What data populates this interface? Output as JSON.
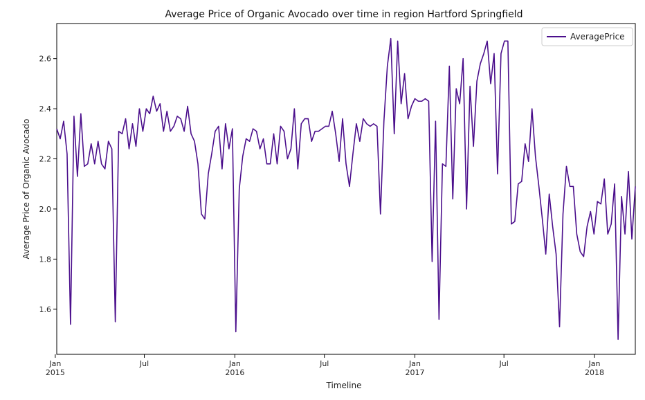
{
  "chart_data": {
    "type": "line",
    "title": "Average Price of Organic Avocado over time in  region Hartford Springfield",
    "xlabel": "Timeline",
    "ylabel": "Average Price of Organic Avocado",
    "xlim": [
      "2015-01-04",
      "2018-03-25"
    ],
    "ylim": [
      1.42,
      2.74
    ],
    "yticks": [
      1.6,
      1.8,
      2.0,
      2.2,
      2.4,
      2.6
    ],
    "xticks": [
      {
        "date": "2015-01-01",
        "label": "Jan",
        "year": "2015"
      },
      {
        "date": "2015-07-01",
        "label": "Jul",
        "year": ""
      },
      {
        "date": "2016-01-01",
        "label": "Jan",
        "year": "2016"
      },
      {
        "date": "2016-07-01",
        "label": "Jul",
        "year": ""
      },
      {
        "date": "2017-01-01",
        "label": "Jan",
        "year": "2017"
      },
      {
        "date": "2017-07-01",
        "label": "Jul",
        "year": ""
      },
      {
        "date": "2018-01-01",
        "label": "Jan",
        "year": "2018"
      }
    ],
    "grid": false,
    "legend_position": "top-right",
    "series": [
      {
        "name": "AveragePrice",
        "color": "#4b0f8c",
        "start": "2015-01-04",
        "frequency": "weekly",
        "values": [
          2.32,
          2.28,
          2.35,
          2.22,
          1.54,
          2.37,
          2.13,
          2.38,
          2.17,
          2.18,
          2.26,
          2.18,
          2.27,
          2.18,
          2.16,
          2.27,
          2.24,
          1.55,
          2.31,
          2.3,
          2.36,
          2.24,
          2.34,
          2.25,
          2.4,
          2.31,
          2.4,
          2.38,
          2.45,
          2.39,
          2.42,
          2.31,
          2.39,
          2.31,
          2.33,
          2.37,
          2.36,
          2.31,
          2.41,
          2.3,
          2.27,
          2.18,
          1.98,
          1.96,
          2.14,
          2.22,
          2.31,
          2.33,
          2.16,
          2.34,
          2.24,
          2.32,
          1.51,
          2.08,
          2.21,
          2.28,
          2.27,
          2.32,
          2.31,
          2.24,
          2.28,
          2.18,
          2.18,
          2.3,
          2.18,
          2.33,
          2.31,
          2.2,
          2.24,
          2.4,
          2.16,
          2.34,
          2.36,
          2.36,
          2.27,
          2.31,
          2.31,
          2.32,
          2.33,
          2.33,
          2.39,
          2.3,
          2.19,
          2.36,
          2.18,
          2.09,
          2.22,
          2.34,
          2.27,
          2.36,
          2.34,
          2.33,
          2.34,
          2.33,
          1.98,
          2.35,
          2.57,
          2.68,
          2.3,
          2.67,
          2.42,
          2.54,
          2.36,
          2.41,
          2.44,
          2.43,
          2.43,
          2.44,
          2.43,
          1.79,
          2.35,
          1.56,
          2.18,
          2.17,
          2.57,
          2.04,
          2.48,
          2.42,
          2.6,
          2.0,
          2.49,
          2.25,
          2.51,
          2.58,
          2.62,
          2.67,
          2.5,
          2.62,
          2.14,
          2.62,
          2.67,
          2.67,
          1.94,
          1.95,
          2.1,
          2.11,
          2.26,
          2.19,
          2.4,
          2.21,
          2.09,
          1.96,
          1.82,
          2.06,
          1.93,
          1.82,
          1.53,
          1.98,
          2.17,
          2.09,
          2.09,
          1.9,
          1.83,
          1.81,
          1.93,
          1.99,
          1.9,
          2.03,
          2.02,
          2.12,
          1.9,
          1.94,
          2.1,
          1.48,
          2.05,
          1.9,
          2.15,
          1.88,
          2.09
        ]
      }
    ]
  }
}
